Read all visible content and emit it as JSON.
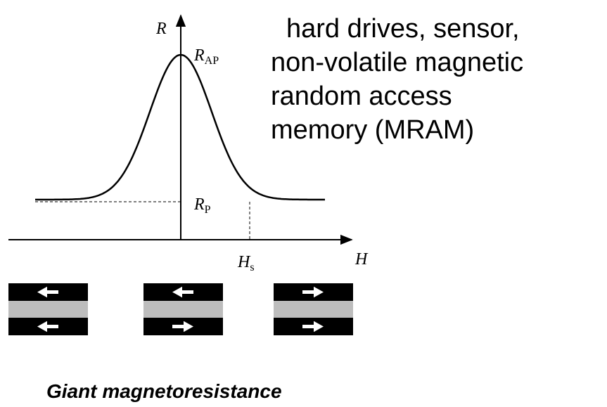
{
  "diagram": {
    "y_axis_label": "R",
    "x_axis_label": "H",
    "peak_label": {
      "main": "R",
      "sub": "AP"
    },
    "base_label": {
      "main": "R",
      "sub": "P"
    },
    "field_label": {
      "main": "H",
      "sub": "s"
    },
    "description": [
      "hard drives, sensor,",
      "non-volatile magnetic",
      "random access",
      "memory (MRAM)"
    ],
    "caption": "Giant magnetoresistance"
  }
}
